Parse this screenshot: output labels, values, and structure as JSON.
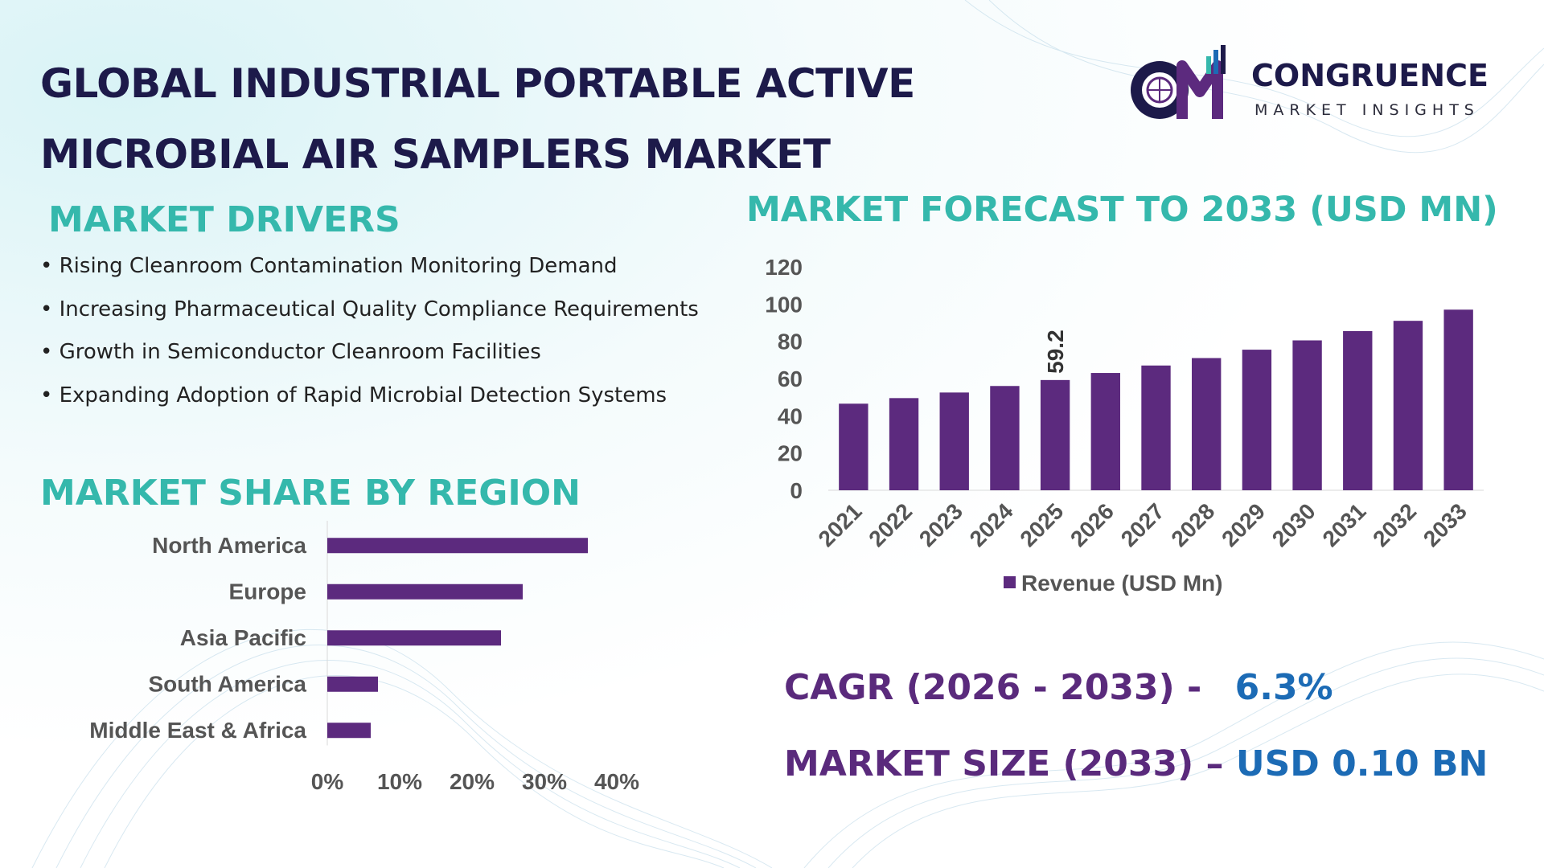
{
  "title_line1": "GLOBAL INDUSTRIAL PORTABLE ACTIVE",
  "title_line2": "MICROBIAL AIR SAMPLERS MARKET",
  "logo": {
    "mark": "CM",
    "name": "CONGRUENCE",
    "tagline": "MARKET INSIGHTS",
    "icon": "globe-bar-logo-icon"
  },
  "drivers": {
    "heading": "MARKET DRIVERS",
    "items": [
      "Rising Cleanroom Contamination Monitoring Demand",
      "Increasing Pharmaceutical Quality Compliance Requirements",
      "Growth in Semiconductor Cleanroom Facilities",
      "Expanding Adoption of Rapid Microbial Detection Systems"
    ]
  },
  "region": {
    "heading": "MARKET SHARE BY REGION"
  },
  "forecast": {
    "heading": "MARKET FORECAST TO 2033 (USD MN)"
  },
  "kpis": {
    "cagr_label": "CAGR (2026 - 2033) -",
    "cagr_value": "6.3%",
    "size_label": "MARKET SIZE (2033) –",
    "size_value": "USD 0.10 BN"
  },
  "colors": {
    "bar": "#5c2a7e",
    "heading": "#35b8ac",
    "title": "#1d1a4a",
    "value": "#1c6bb5",
    "axis_text": "#555555"
  },
  "chart_data": [
    {
      "type": "bar",
      "orientation": "horizontal",
      "categories": [
        "North America",
        "Europe",
        "Asia Pacific",
        "South America",
        "Middle East & Africa"
      ],
      "values": [
        36,
        27,
        24,
        7,
        6
      ],
      "xlim": [
        0,
        40
      ],
      "xticks": [
        "0%",
        "10%",
        "20%",
        "30%",
        "40%"
      ],
      "grid": false
    },
    {
      "type": "bar",
      "categories": [
        "2021",
        "2022",
        "2023",
        "2024",
        "2025",
        "2026",
        "2027",
        "2028",
        "2029",
        "2030",
        "2031",
        "2032",
        "2033"
      ],
      "series": [
        {
          "name": "Revenue (USD Mn)",
          "values": [
            46.5,
            49.5,
            52.5,
            56,
            59.2,
            63,
            67,
            71,
            75.5,
            80.5,
            85.5,
            91,
            97
          ]
        }
      ],
      "data_labels": [
        {
          "category": "2025",
          "text": "59.2"
        }
      ],
      "ylim": [
        0,
        120
      ],
      "yticks": [
        "0",
        "20",
        "40",
        "60",
        "80",
        "100",
        "120"
      ],
      "legend": "bottom",
      "grid": false
    }
  ]
}
